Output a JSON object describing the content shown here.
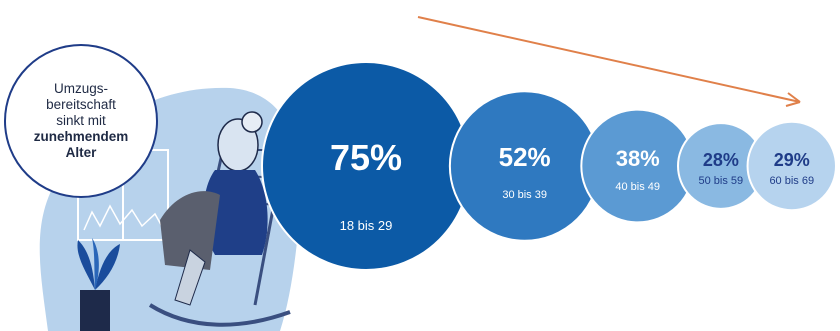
{
  "callout": {
    "line1": "Umzugs-",
    "line2": "bereitschaft",
    "line3": "sinkt mit",
    "line4_bold": "zunehmendem",
    "line5_bold": "Alter"
  },
  "colors": {
    "bubble": [
      "#0c5aa6",
      "#2f79c0",
      "#5b9ad3",
      "#8ab9e2",
      "#b6d3ee"
    ],
    "percent_text": [
      "#ffffff",
      "#ffffff",
      "#ffffff",
      "#1f3c88",
      "#1f3c88"
    ],
    "label_text": [
      "#ffffff",
      "#ffffff",
      "#ffffff",
      "#1f3c88",
      "#1f3c88"
    ],
    "arrow": "#e0804a",
    "illustration_bg": "#b7d2ec",
    "callout_border": "#1f3c88"
  },
  "chart_data": {
    "type": "bubble",
    "categories": [
      "18 bis 29",
      "30 bis 39",
      "40 bis 49",
      "50 bis 59",
      "60 bis 69"
    ],
    "values": [
      75,
      52,
      38,
      28,
      29
    ],
    "value_labels": [
      "75%",
      "52%",
      "38%",
      "28%",
      "29%"
    ],
    "trend_arrow": "decreasing"
  }
}
